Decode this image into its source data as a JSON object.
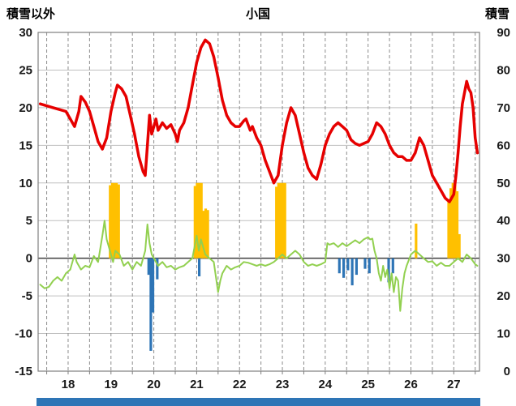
{
  "header": {
    "left_axis_title": "積雪以外",
    "chart_title": "小国",
    "right_axis_title": "積雪"
  },
  "colors": {
    "red_line": "#e60000",
    "green_line": "#92d050",
    "orange_bar": "#ffc000",
    "blue_bar": "#2e75b6",
    "grid_major": "#bfbfbf",
    "grid_minor": "#8c8c8c",
    "zero_line": "#404040",
    "border": "#7f7f7f",
    "text": "#1a1a1a",
    "bottom_bar": "#2e75b6",
    "background": "#ffffff"
  },
  "chart_data": {
    "type": "line",
    "title": "小国",
    "left_axis": {
      "title": "積雪以外",
      "min": -15,
      "max": 30,
      "tick_step": 5,
      "ticks": [
        30,
        25,
        20,
        15,
        10,
        5,
        0,
        -5,
        -10,
        -15
      ]
    },
    "right_axis": {
      "title": "積雪",
      "min": 0,
      "max": 90,
      "tick_step": 10,
      "ticks": [
        90,
        80,
        70,
        60,
        50,
        40,
        30,
        20,
        10,
        0
      ]
    },
    "x_axis": {
      "min": 17.3,
      "max": 27.6,
      "labels": [
        18,
        19,
        20,
        21,
        22,
        23,
        24,
        25,
        26,
        27
      ],
      "minor_grid_step": 0.5,
      "grid_start": 17.5,
      "grid_end": 27.5
    },
    "grid": {
      "horizontal": true,
      "vertical_dashed": true,
      "legend": "none"
    },
    "series": [
      {
        "name": "red-line",
        "type": "line",
        "axis": "right",
        "width": 3.5,
        "points": [
          [
            17.35,
            71
          ],
          [
            17.5,
            70.5
          ],
          [
            17.65,
            70
          ],
          [
            17.8,
            69.5
          ],
          [
            17.95,
            69
          ],
          [
            18.05,
            67
          ],
          [
            18.15,
            65
          ],
          [
            18.25,
            69
          ],
          [
            18.3,
            73
          ],
          [
            18.4,
            71.5
          ],
          [
            18.5,
            69
          ],
          [
            18.6,
            65
          ],
          [
            18.7,
            61
          ],
          [
            18.8,
            59
          ],
          [
            18.9,
            62
          ],
          [
            19.0,
            69
          ],
          [
            19.1,
            74
          ],
          [
            19.15,
            76
          ],
          [
            19.25,
            75
          ],
          [
            19.35,
            73
          ],
          [
            19.45,
            68
          ],
          [
            19.55,
            63
          ],
          [
            19.65,
            57
          ],
          [
            19.75,
            53
          ],
          [
            19.8,
            52
          ],
          [
            19.85,
            60
          ],
          [
            19.9,
            68
          ],
          [
            19.95,
            63
          ],
          [
            20.0,
            65
          ],
          [
            20.05,
            67
          ],
          [
            20.1,
            64
          ],
          [
            20.2,
            66
          ],
          [
            20.3,
            64.5
          ],
          [
            20.4,
            65.5
          ],
          [
            20.5,
            63
          ],
          [
            20.55,
            61
          ],
          [
            20.6,
            64
          ],
          [
            20.7,
            66
          ],
          [
            20.8,
            70
          ],
          [
            20.9,
            76
          ],
          [
            21.0,
            82
          ],
          [
            21.1,
            86
          ],
          [
            21.2,
            88
          ],
          [
            21.3,
            87
          ],
          [
            21.4,
            83.5
          ],
          [
            21.5,
            78
          ],
          [
            21.6,
            72
          ],
          [
            21.7,
            68
          ],
          [
            21.8,
            66
          ],
          [
            21.9,
            65
          ],
          [
            22.0,
            65
          ],
          [
            22.1,
            66.5
          ],
          [
            22.15,
            67
          ],
          [
            22.25,
            64
          ],
          [
            22.3,
            65
          ],
          [
            22.4,
            62
          ],
          [
            22.5,
            60
          ],
          [
            22.6,
            56
          ],
          [
            22.7,
            53
          ],
          [
            22.8,
            50
          ],
          [
            22.9,
            52
          ],
          [
            23.0,
            60
          ],
          [
            23.1,
            66
          ],
          [
            23.2,
            70
          ],
          [
            23.3,
            68
          ],
          [
            23.4,
            63
          ],
          [
            23.5,
            58
          ],
          [
            23.6,
            54
          ],
          [
            23.7,
            52
          ],
          [
            23.8,
            51
          ],
          [
            23.9,
            55
          ],
          [
            24.0,
            60
          ],
          [
            24.1,
            63
          ],
          [
            24.2,
            65
          ],
          [
            24.3,
            66
          ],
          [
            24.4,
            65
          ],
          [
            24.5,
            64
          ],
          [
            24.6,
            61.5
          ],
          [
            24.7,
            60.5
          ],
          [
            24.8,
            60
          ],
          [
            24.9,
            60.5
          ],
          [
            25.0,
            61
          ],
          [
            25.1,
            63
          ],
          [
            25.2,
            66
          ],
          [
            25.3,
            65
          ],
          [
            25.4,
            63
          ],
          [
            25.5,
            60
          ],
          [
            25.6,
            58
          ],
          [
            25.7,
            57
          ],
          [
            25.8,
            57
          ],
          [
            25.9,
            56
          ],
          [
            26.0,
            56
          ],
          [
            26.1,
            58
          ],
          [
            26.2,
            62
          ],
          [
            26.3,
            60
          ],
          [
            26.4,
            56
          ],
          [
            26.5,
            52
          ],
          [
            26.6,
            50
          ],
          [
            26.7,
            48
          ],
          [
            26.8,
            46
          ],
          [
            26.9,
            45
          ],
          [
            27.0,
            47
          ],
          [
            27.05,
            52
          ],
          [
            27.1,
            58
          ],
          [
            27.15,
            65
          ],
          [
            27.2,
            71
          ],
          [
            27.3,
            77
          ],
          [
            27.35,
            75
          ],
          [
            27.4,
            74
          ],
          [
            27.45,
            70
          ],
          [
            27.5,
            62
          ],
          [
            27.55,
            58
          ]
        ]
      },
      {
        "name": "green-line",
        "type": "line",
        "axis": "left",
        "width": 2,
        "points": [
          [
            17.35,
            -3.5
          ],
          [
            17.45,
            -4
          ],
          [
            17.55,
            -3.8
          ],
          [
            17.65,
            -3
          ],
          [
            17.75,
            -2.5
          ],
          [
            17.85,
            -3
          ],
          [
            17.95,
            -2
          ],
          [
            18.05,
            -1.5
          ],
          [
            18.15,
            0.5
          ],
          [
            18.2,
            -0.5
          ],
          [
            18.3,
            -1.5
          ],
          [
            18.4,
            -1
          ],
          [
            18.5,
            -1.2
          ],
          [
            18.6,
            0.3
          ],
          [
            18.7,
            -0.5
          ],
          [
            18.8,
            3
          ],
          [
            18.85,
            5
          ],
          [
            18.9,
            2.5
          ],
          [
            19.0,
            0.5
          ],
          [
            19.05,
            -0.5
          ],
          [
            19.1,
            1
          ],
          [
            19.2,
            0.5
          ],
          [
            19.3,
            -1
          ],
          [
            19.4,
            -0.5
          ],
          [
            19.5,
            -1.5
          ],
          [
            19.6,
            -0.5
          ],
          [
            19.7,
            -1
          ],
          [
            19.8,
            1
          ],
          [
            19.85,
            4.5
          ],
          [
            19.9,
            2
          ],
          [
            19.95,
            0.5
          ],
          [
            20.0,
            0
          ],
          [
            20.1,
            -1
          ],
          [
            20.2,
            -0.5
          ],
          [
            20.3,
            -1.2
          ],
          [
            20.4,
            -1
          ],
          [
            20.5,
            -1.5
          ],
          [
            20.6,
            -1.2
          ],
          [
            20.7,
            -1
          ],
          [
            20.8,
            -0.5
          ],
          [
            20.9,
            0
          ],
          [
            20.95,
            1.5
          ],
          [
            21.0,
            3
          ],
          [
            21.05,
            1
          ],
          [
            21.1,
            2.5
          ],
          [
            21.15,
            1.5
          ],
          [
            21.2,
            0.5
          ],
          [
            21.3,
            0
          ],
          [
            21.4,
            -0.5
          ],
          [
            21.5,
            -4.5
          ],
          [
            21.55,
            -3
          ],
          [
            21.6,
            -2
          ],
          [
            21.7,
            -1
          ],
          [
            21.8,
            -1.5
          ],
          [
            21.9,
            -1.2
          ],
          [
            22.0,
            -1
          ],
          [
            22.1,
            -0.5
          ],
          [
            22.2,
            -0.6
          ],
          [
            22.3,
            -0.8
          ],
          [
            22.4,
            -1
          ],
          [
            22.5,
            -0.8
          ],
          [
            22.6,
            -1
          ],
          [
            22.7,
            -0.8
          ],
          [
            22.8,
            -0.5
          ],
          [
            22.9,
            0
          ],
          [
            23.0,
            0.5
          ],
          [
            23.1,
            0
          ],
          [
            23.2,
            0.5
          ],
          [
            23.3,
            1
          ],
          [
            23.4,
            0.5
          ],
          [
            23.5,
            -0.5
          ],
          [
            23.6,
            -1
          ],
          [
            23.7,
            -0.8
          ],
          [
            23.8,
            -1
          ],
          [
            23.9,
            -0.8
          ],
          [
            24.0,
            -0.5
          ],
          [
            24.05,
            2
          ],
          [
            24.1,
            1.8
          ],
          [
            24.2,
            2
          ],
          [
            24.3,
            1.5
          ],
          [
            24.4,
            2
          ],
          [
            24.5,
            1.6
          ],
          [
            24.6,
            2
          ],
          [
            24.7,
            2.4
          ],
          [
            24.8,
            2
          ],
          [
            24.9,
            2.5
          ],
          [
            25.0,
            2.8
          ],
          [
            25.05,
            2.5
          ],
          [
            25.1,
            2.6
          ],
          [
            25.15,
            1
          ],
          [
            25.2,
            0
          ],
          [
            25.25,
            -2
          ],
          [
            25.3,
            -3
          ],
          [
            25.35,
            -1
          ],
          [
            25.4,
            -2.5
          ],
          [
            25.45,
            -1.5
          ],
          [
            25.5,
            -4
          ],
          [
            25.55,
            -2
          ],
          [
            25.6,
            -4.5
          ],
          [
            25.65,
            -2.5
          ],
          [
            25.7,
            -3
          ],
          [
            25.75,
            -7
          ],
          [
            25.8,
            -4
          ],
          [
            25.85,
            -2
          ],
          [
            25.9,
            -1
          ],
          [
            26.0,
            0.5
          ],
          [
            26.1,
            1
          ],
          [
            26.2,
            0.5
          ],
          [
            26.3,
            0
          ],
          [
            26.4,
            -0.5
          ],
          [
            26.5,
            -0.4
          ],
          [
            26.6,
            -1
          ],
          [
            26.7,
            -0.6
          ],
          [
            26.8,
            -1
          ],
          [
            26.9,
            -1
          ],
          [
            27.0,
            -0.5
          ],
          [
            27.1,
            0
          ],
          [
            27.2,
            -0.5
          ],
          [
            27.3,
            0.5
          ],
          [
            27.4,
            0
          ],
          [
            27.5,
            -0.8
          ],
          [
            27.55,
            -1
          ]
        ]
      },
      {
        "name": "orange-bars",
        "type": "bar",
        "axis": "left",
        "bar_width": 0.06,
        "points": [
          [
            18.98,
            9.7
          ],
          [
            19.03,
            10
          ],
          [
            19.08,
            10
          ],
          [
            19.13,
            10
          ],
          [
            19.18,
            9.8
          ],
          [
            20.96,
            9.6
          ],
          [
            21.01,
            10
          ],
          [
            21.06,
            10
          ],
          [
            21.11,
            10
          ],
          [
            21.16,
            6.3
          ],
          [
            21.21,
            6.6
          ],
          [
            21.26,
            6.4
          ],
          [
            22.86,
            9.5
          ],
          [
            22.91,
            10
          ],
          [
            22.96,
            10
          ],
          [
            23.01,
            10
          ],
          [
            23.06,
            10
          ],
          [
            26.12,
            4.6
          ],
          [
            26.88,
            7.8
          ],
          [
            26.93,
            9.3
          ],
          [
            26.98,
            10
          ],
          [
            27.03,
            9.9
          ],
          [
            27.08,
            8.9
          ],
          [
            27.13,
            3.2
          ]
        ]
      },
      {
        "name": "blue-bars",
        "type": "bar",
        "axis": "left",
        "bar_width": 0.06,
        "points": [
          [
            19.88,
            -2.2
          ],
          [
            19.93,
            -12.3
          ],
          [
            19.98,
            -7.2
          ],
          [
            20.08,
            -2.8
          ],
          [
            21.06,
            -2.4
          ],
          [
            24.33,
            -2.0
          ],
          [
            24.43,
            -2.6
          ],
          [
            24.53,
            -1.6
          ],
          [
            24.63,
            -3.6
          ],
          [
            24.73,
            -2.2
          ],
          [
            24.93,
            -1.4
          ],
          [
            25.03,
            -2.0
          ],
          [
            25.48,
            -3.2
          ],
          [
            25.58,
            -2.0
          ]
        ]
      }
    ]
  }
}
